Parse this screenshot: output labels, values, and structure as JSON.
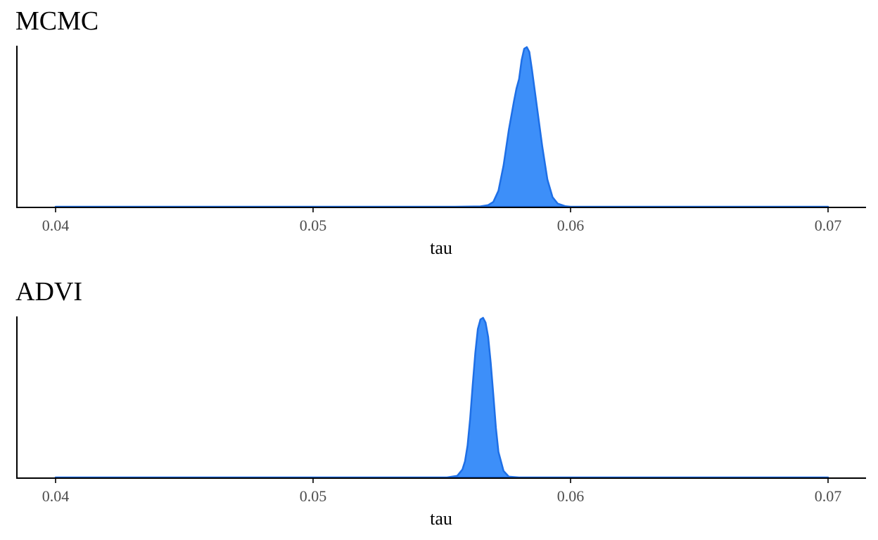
{
  "chart_data": [
    {
      "type": "area",
      "title": "MCMC",
      "xlabel": "tau",
      "ylabel": "",
      "xlim": [
        0.04,
        0.07
      ],
      "xticks": [
        0.04,
        0.05,
        0.06,
        0.07
      ],
      "xtick_labels": [
        "0.04",
        "0.05",
        "0.06",
        "0.07"
      ],
      "y_axis_ticks_shown": false,
      "grid": false,
      "legend": "none",
      "fill_color": "#3d8ff9",
      "line_color": "#1e6fe6",
      "density": {
        "x": [
          0.04,
          0.052,
          0.0555,
          0.0565,
          0.0568,
          0.057,
          0.0572,
          0.0574,
          0.0576,
          0.0578,
          0.0579,
          0.058,
          0.0581,
          0.0582,
          0.0583,
          0.0584,
          0.0585,
          0.0587,
          0.0589,
          0.0591,
          0.0593,
          0.0595,
          0.0598,
          0.06,
          0.07
        ],
        "y": [
          0,
          0,
          0,
          0.002,
          0.01,
          0.03,
          0.1,
          0.26,
          0.48,
          0.66,
          0.74,
          0.8,
          0.92,
          0.99,
          1.0,
          0.97,
          0.86,
          0.62,
          0.38,
          0.17,
          0.06,
          0.02,
          0.003,
          0,
          0
        ]
      }
    },
    {
      "type": "area",
      "title": "ADVI",
      "xlabel": "tau",
      "ylabel": "",
      "xlim": [
        0.04,
        0.07
      ],
      "xticks": [
        0.04,
        0.05,
        0.06,
        0.07
      ],
      "xtick_labels": [
        "0.04",
        "0.05",
        "0.06",
        "0.07"
      ],
      "y_axis_ticks_shown": false,
      "grid": false,
      "legend": "none",
      "fill_color": "#3d8ff9",
      "line_color": "#1e6fe6",
      "density": {
        "x": [
          0.04,
          0.052,
          0.0552,
          0.0556,
          0.0558,
          0.0559,
          0.056,
          0.0561,
          0.0562,
          0.0563,
          0.0564,
          0.0565,
          0.0566,
          0.0567,
          0.0568,
          0.0569,
          0.057,
          0.0571,
          0.0572,
          0.0574,
          0.0576,
          0.058,
          0.07
        ],
        "y": [
          0,
          0,
          0,
          0.01,
          0.05,
          0.1,
          0.2,
          0.37,
          0.58,
          0.78,
          0.93,
          0.99,
          1.0,
          0.97,
          0.88,
          0.72,
          0.52,
          0.31,
          0.16,
          0.04,
          0.005,
          0,
          0
        ]
      }
    }
  ]
}
